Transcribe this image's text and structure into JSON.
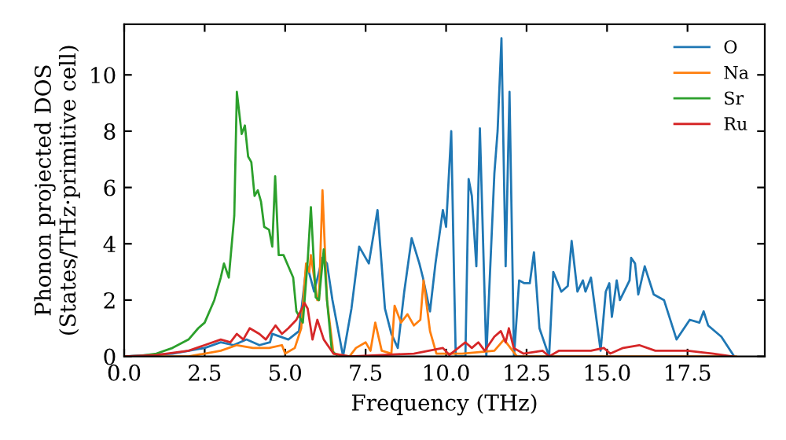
{
  "chart_data": {
    "type": "line",
    "xlabel": "Frequency (THz)",
    "ylabel": "Phonon projected DOS\n(States/THz·primitive cell)",
    "xlim": [
      0,
      19.9
    ],
    "ylim": [
      0,
      11.8
    ],
    "xticks": [
      {
        "value": 0,
        "label": "0.0"
      },
      {
        "value": 2.5,
        "label": "2.5"
      },
      {
        "value": 5,
        "label": "5.0"
      },
      {
        "value": 7.5,
        "label": "7.5"
      },
      {
        "value": 10,
        "label": "10.0"
      },
      {
        "value": 12.5,
        "label": "12.5"
      },
      {
        "value": 15,
        "label": "15.0"
      },
      {
        "value": 17.5,
        "label": "17.5"
      }
    ],
    "yticks": [
      0,
      2,
      4,
      6,
      8,
      10
    ],
    "legend": "top right",
    "grid": false,
    "marker": "none",
    "line_style": "solid",
    "series": [
      {
        "name": "O",
        "color": "#1f77b4",
        "x": [
          0,
          1.5,
          2.5,
          3.0,
          3.4,
          3.8,
          4.2,
          4.53,
          4.6,
          5.1,
          5.43,
          5.67,
          5.9,
          6.16,
          6.3,
          6.47,
          6.8,
          7.06,
          7.3,
          7.6,
          7.87,
          8.1,
          8.3,
          8.5,
          8.7,
          8.93,
          9.17,
          9.28,
          9.5,
          9.67,
          9.9,
          10.0,
          10.16,
          10.25,
          10.3,
          10.6,
          10.7,
          10.8,
          10.94,
          11.05,
          11.25,
          11.5,
          11.6,
          11.72,
          11.85,
          11.97,
          12.11,
          12.27,
          12.43,
          12.6,
          12.73,
          12.9,
          13.2,
          13.33,
          13.58,
          13.78,
          13.9,
          14.08,
          14.25,
          14.33,
          14.5,
          14.8,
          14.96,
          15.07,
          15.15,
          15.3,
          15.4,
          15.7,
          15.75,
          15.87,
          15.97,
          16.17,
          16.45,
          16.77,
          17.16,
          17.57,
          17.87,
          18.0,
          18.14,
          18.55,
          18.95
        ],
        "values": [
          0,
          0.1,
          0.3,
          0.5,
          0.4,
          0.6,
          0.4,
          0.5,
          0.8,
          0.6,
          0.9,
          3.3,
          2.3,
          3.5,
          3.3,
          2.0,
          0,
          1.7,
          3.9,
          3.3,
          5.2,
          1.7,
          0.8,
          0.3,
          2.3,
          4.2,
          3.3,
          2.8,
          1.6,
          3.3,
          5.2,
          4.6,
          8.0,
          2.7,
          0,
          0,
          6.3,
          5.7,
          3.2,
          8.1,
          0,
          6.5,
          8.0,
          11.3,
          3.2,
          9.4,
          0,
          2.7,
          2.6,
          2.6,
          3.7,
          1.0,
          0,
          3.0,
          2.3,
          2.5,
          4.1,
          2.3,
          2.7,
          2.3,
          2.8,
          0.2,
          2.3,
          2.6,
          1.4,
          2.7,
          2.0,
          2.7,
          3.5,
          3.3,
          2.2,
          3.2,
          2.2,
          2.0,
          0.6,
          1.3,
          1.2,
          1.6,
          1.1,
          0.7,
          0
        ]
      },
      {
        "name": "Na",
        "color": "#ff7f0e",
        "x": [
          0,
          2.0,
          2.5,
          3.0,
          3.5,
          4.0,
          4.5,
          4.9,
          5.0,
          5.3,
          5.5,
          5.65,
          5.75,
          5.8,
          6.0,
          6.05,
          6.16,
          6.3,
          6.5,
          7.0,
          7.2,
          7.5,
          7.65,
          7.8,
          8.0,
          8.3,
          8.4,
          8.6,
          8.8,
          9.0,
          9.2,
          9.3,
          9.5,
          9.7,
          10.5,
          11.5,
          11.8,
          12.2,
          19.0
        ],
        "values": [
          0,
          0,
          0.1,
          0.2,
          0.4,
          0.3,
          0.3,
          0.4,
          0.1,
          0.3,
          1.0,
          3.3,
          3.0,
          3.6,
          2.0,
          2.0,
          5.9,
          2.0,
          0.1,
          0,
          0.3,
          0.5,
          0.2,
          1.2,
          0.2,
          0.1,
          1.8,
          1.2,
          1.5,
          1.1,
          1.3,
          2.7,
          0.9,
          0.1,
          0.1,
          0.2,
          0.6,
          0,
          0
        ]
      },
      {
        "name": "Sr",
        "color": "#2ca02c",
        "x": [
          0,
          0.5,
          1.0,
          1.5,
          2.0,
          2.3,
          2.5,
          2.8,
          3.0,
          3.1,
          3.25,
          3.42,
          3.5,
          3.65,
          3.75,
          3.85,
          3.95,
          4.05,
          4.15,
          4.25,
          4.35,
          4.5,
          4.6,
          4.69,
          4.8,
          4.95,
          5.1,
          5.25,
          5.35,
          5.55,
          5.7,
          5.8,
          5.95,
          6.05,
          6.2,
          6.3,
          6.45,
          6.6
        ],
        "values": [
          0,
          0.02,
          0.1,
          0.3,
          0.6,
          1.0,
          1.2,
          2.0,
          2.8,
          3.3,
          2.8,
          5.0,
          9.4,
          7.9,
          8.2,
          7.1,
          6.9,
          5.7,
          5.9,
          5.5,
          4.6,
          4.5,
          3.9,
          6.4,
          3.6,
          3.6,
          3.2,
          2.8,
          1.6,
          1.2,
          3.4,
          5.3,
          2.1,
          2.0,
          3.8,
          2.0,
          0.2,
          0.05
        ]
      },
      {
        "name": "Ru",
        "color": "#d62728",
        "x": [
          0,
          1.0,
          2.0,
          2.5,
          3.0,
          3.3,
          3.5,
          3.7,
          3.9,
          4.2,
          4.4,
          4.7,
          4.9,
          5.1,
          5.35,
          5.6,
          5.7,
          5.85,
          6.0,
          6.2,
          6.5,
          7.0,
          8.0,
          9.0,
          9.9,
          10.1,
          10.6,
          10.8,
          11.0,
          11.2,
          11.5,
          11.7,
          11.85,
          11.95,
          12.1,
          12.4,
          13.0,
          13.2,
          13.5,
          14.5,
          14.9,
          15.1,
          15.5,
          16.0,
          16.5,
          17.5,
          18.3,
          18.9
        ],
        "values": [
          0,
          0.05,
          0.2,
          0.4,
          0.6,
          0.5,
          0.8,
          0.6,
          1.0,
          0.8,
          0.6,
          1.1,
          0.8,
          1.0,
          1.3,
          1.9,
          1.7,
          0.6,
          1.3,
          0.6,
          0.1,
          0,
          0.05,
          0.1,
          0.3,
          0.05,
          0.5,
          0.3,
          0.5,
          0.2,
          0.7,
          0.9,
          0.5,
          1.0,
          0.3,
          0.1,
          0.2,
          0,
          0.2,
          0.2,
          0.3,
          0.1,
          0.3,
          0.4,
          0.2,
          0.2,
          0.1,
          0
        ]
      }
    ]
  }
}
